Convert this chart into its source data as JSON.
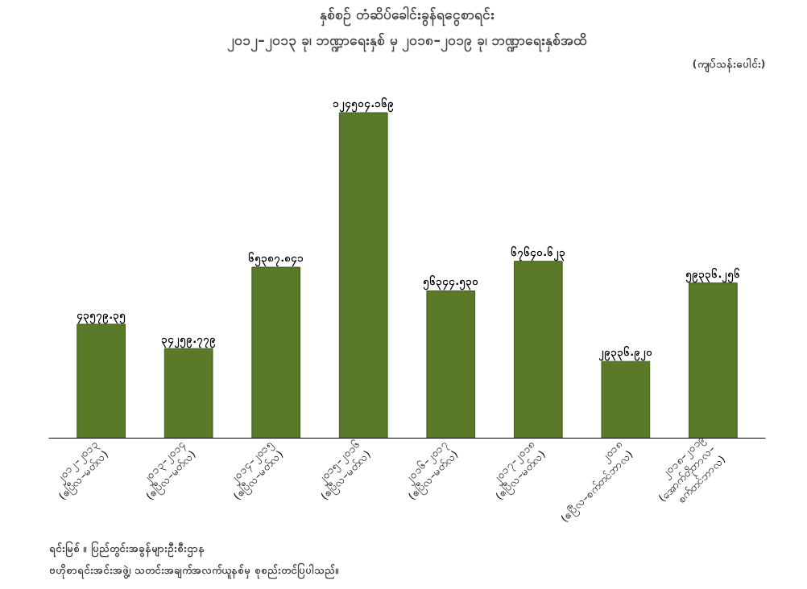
{
  "chart_data": {
    "type": "bar",
    "title": "နှစ်စဉ် တံဆိပ်ခေါင်းခွန်ရငွေစာရင်း",
    "subtitle": "၂၀၁၂–၂၀၁၃ ခု၊ ဘဏ္ဍာရေးနှစ် မှ ၂၀၁၈–၂၀၁၉ ခု၊ ဘဏ္ဍာရေးနှစ်အထိ",
    "ylabel": "(ကျပ်သန်းပေါင်း)",
    "categories": [
      "၂၀၁၂–၂၀၁၃\n(ဧပြီလ–မတ်လ)",
      "၂၀၁၃–၂၀၁၄\n(ဧပြီလ–မတ်လ)",
      "၂၀၁၄–၂၀၁၅\n(ဧပြီလ–မတ်လ)",
      "၂၀၁၅–၂၀၁၆\n(ဧပြီလ–မတ်လ)",
      "၂၀၁၆–၂၀၁၇\n(ဧပြီလ–မတ်လ)",
      "၂၀၁၇–၂၀၁၈\n(ဧပြီလ–မတ်လ)",
      "၂၀၁၈\n(ဧပြီလ–စက်တင်ဘာလ)",
      "၂၀၁၈–၂၀၁၉\n(အောက်တိုဘာလ–\nစက်တင်ဘာလ)"
    ],
    "values": [
      43579.35,
      34259.779,
      65387.841,
      124504.169,
      56344.53,
      67640.623,
      29336.92,
      59336.256
    ],
    "value_labels": [
      "၄၃၅၇၉.၃၅",
      "၃၄၂၅၉.၇၇၉",
      "၆၅၃၈၇.၈၄၁",
      "၁၂၄၅၀၄.၁၆၉",
      "၅၆၃၄၄.၅၃၀",
      "၆၇၆၄၀.၆၂၃",
      "၂၉၃၃၆.၉၂၀",
      "၅၉၃၃၆.၂၅၆"
    ],
    "color": "#5b7a29",
    "grid": false,
    "annotations": [
      "ရင်းမြစ် ။ ပြည်တွင်းအခွန်များဦးစီးဌာန",
      "ဗဟိုစာရင်းအင်းအဖွဲ့၊ သတင်းအချက်အလက်ယူနစ်မှ စုစည်းတင်ပြပါသည်။"
    ]
  }
}
